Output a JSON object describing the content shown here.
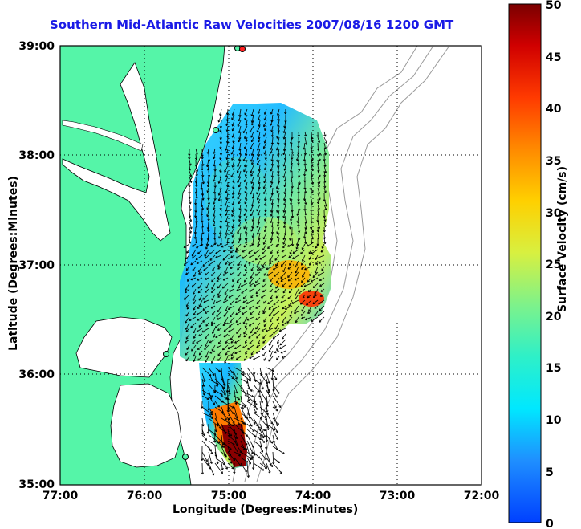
{
  "title": "Southern Mid-Atlantic Raw Velocities 2007/08/16 1200 GMT",
  "xlabel": "Longitude (Degrees:Minutes)",
  "ylabel": "Latitude (Degrees:Minutes)",
  "colorbar_label": "Surface Velocity (cm/s)",
  "x_ticks": [
    "77:00",
    "76:00",
    "75:00",
    "74:00",
    "73:00",
    "72:00"
  ],
  "y_ticks": [
    "39:00",
    "38:00",
    "37:00",
    "36:00",
    "35:00"
  ],
  "colorbar_ticks": [
    "50",
    "45",
    "40",
    "35",
    "30",
    "25",
    "20",
    "15",
    "10",
    "5",
    "0"
  ],
  "colors": {
    "land": "#55f5a8",
    "title": "#1a1ae6",
    "vector": "#000000",
    "grid": "#000000",
    "bathymetry": "#9a9a9a"
  },
  "map": {
    "lon_range": [
      -77,
      -72
    ],
    "lat_range": [
      35,
      39
    ],
    "velocity_range_cm_s": [
      0,
      50
    ],
    "grid": "dotted"
  }
}
